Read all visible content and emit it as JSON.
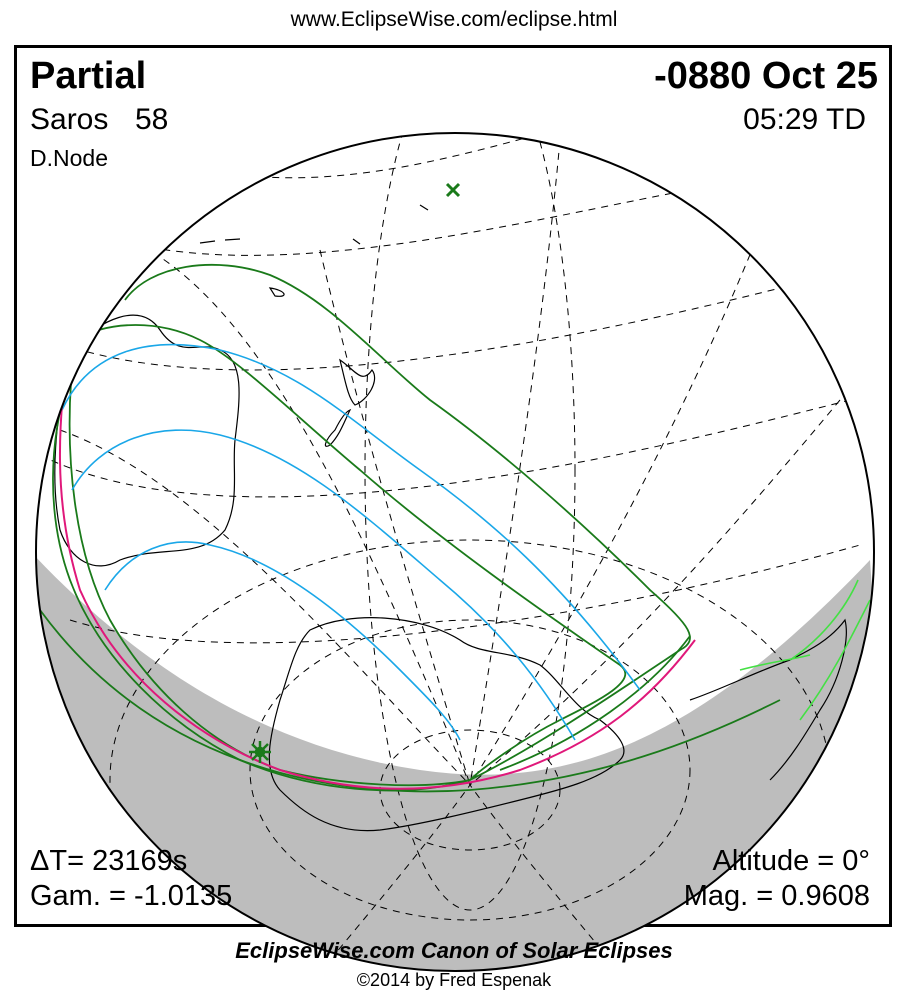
{
  "header": {
    "url": "www.EclipseWise.com/eclipse.html"
  },
  "eclipse": {
    "type": "Partial",
    "date": "-0880 Oct 25",
    "saros_label": "Saros",
    "saros_number": "58",
    "time": "05:29 TD",
    "node": "D.Node"
  },
  "stats": {
    "delta_t": "ΔT=  23169s",
    "gamma": "Gam. = -1.0135",
    "altitude": "Altitude =  0°",
    "magnitude": "Mag. = 0.9608"
  },
  "footer": {
    "canon": "EclipseWise.com Canon of Solar Eclipses",
    "copyright": "©2014 by Fred Espenak"
  },
  "colors": {
    "night_shade": "#bdbdbd",
    "outline": "#000000",
    "graticule": "#000000",
    "penumbra_limit": "#1a7a1a",
    "magnitude_contours": "#1aa7e8",
    "sunrise_sunset_curve": "#e0187a",
    "greatest_eclipse_marker": "#1a7a1a",
    "sub_solar_marker": "#1a7a1a",
    "land_highlight": "#44e044"
  }
}
